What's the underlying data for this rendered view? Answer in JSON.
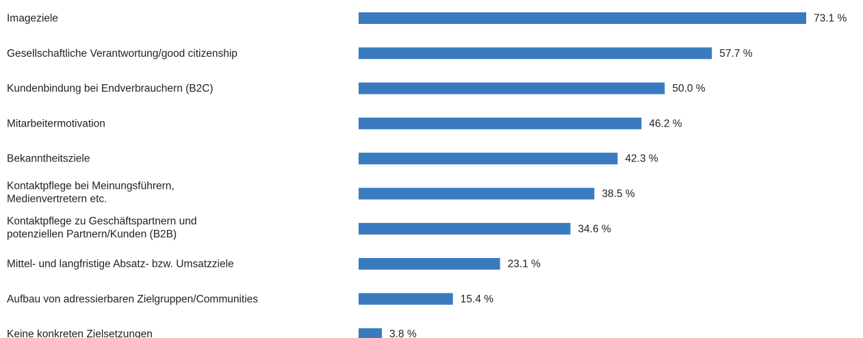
{
  "chart_data": {
    "type": "bar",
    "orientation": "horizontal",
    "categories": [
      [
        "Imageziele"
      ],
      [
        "Gesellschaftliche Verantwortung/good citizenship"
      ],
      [
        "Kundenbindung bei Endverbrauchern (B2C)"
      ],
      [
        "Mitarbeitermotivation"
      ],
      [
        "Bekanntheitsziele"
      ],
      [
        "Kontaktpflege bei Meinungsführern,",
        "Medienvertretern etc."
      ],
      [
        "Kontaktpflege zu Geschäftspartnern und",
        "potenziellen Partnern/Kunden (B2B)"
      ],
      [
        "Mittel- und langfristige Absatz- bzw. Umsatzziele"
      ],
      [
        "Aufbau von adressierbaren Zielgruppen/Communities"
      ],
      [
        "Keine konkreten Zielsetzungen"
      ]
    ],
    "values": [
      73.1,
      57.7,
      50.0,
      46.2,
      42.3,
      38.5,
      34.6,
      23.1,
      15.4,
      3.8
    ],
    "value_labels": [
      "73.1 %",
      "57.7 %",
      "50.0 %",
      "46.2 %",
      "42.3 %",
      "38.5 %",
      "34.6 %",
      "23.1 %",
      "15.4 %",
      "3.8 %"
    ],
    "unit": "%",
    "xlim": [
      0,
      73.1
    ],
    "bar_color": "#3a7bbf",
    "grid": false,
    "legend": "none"
  }
}
